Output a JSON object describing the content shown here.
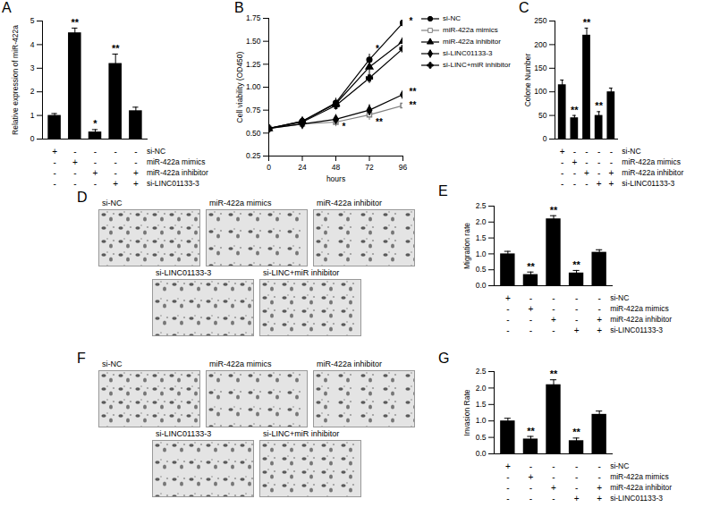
{
  "chart_data": [
    {
      "panel": "A",
      "type": "bar",
      "ylabel": "Relative expression of miR-422a",
      "ylim": [
        0,
        5
      ],
      "yticks": [
        0,
        1,
        2,
        3,
        4,
        5
      ],
      "tick_labels": "y",
      "color": "#000000",
      "values": [
        1.0,
        4.5,
        0.3,
        3.2,
        1.2
      ],
      "errors": [
        0.08,
        0.2,
        0.1,
        0.4,
        0.15
      ],
      "annotations": [
        null,
        "**",
        "*",
        "**",
        null
      ],
      "conditions": [
        {
          "name": "si-NC",
          "marks": [
            "+",
            "-",
            "-",
            "-",
            "-"
          ]
        },
        {
          "name": "miR-422a mimics",
          "marks": [
            "-",
            "+",
            "-",
            "-",
            "-"
          ]
        },
        {
          "name": "miR-422a inhibitor",
          "marks": [
            "-",
            "-",
            "+",
            "-",
            "+"
          ]
        },
        {
          "name": "si-LINC01133-3",
          "marks": [
            "-",
            "-",
            "-",
            "+",
            "+"
          ]
        }
      ]
    },
    {
      "panel": "B",
      "type": "line",
      "xlabel": "hours",
      "ylabel": "Cell viability (OD450)",
      "x": [
        0,
        24,
        48,
        72,
        96
      ],
      "xlim": [
        0,
        96
      ],
      "xticks": [
        0,
        24,
        48,
        72,
        96
      ],
      "ylim": [
        0.25,
        1.75
      ],
      "yticks": [
        0.25,
        {
          "value": 0.5,
          "label": "0.50"
        },
        0.75,
        {
          "value": 1,
          "label": "1.00"
        },
        1.25,
        {
          "value": 1.5,
          "label": "1.50"
        },
        1.75
      ],
      "legend": "right",
      "series": [
        {
          "name": "si-NC",
          "color": "#000000",
          "marker": "circle",
          "values": [
            0.55,
            0.63,
            0.83,
            1.3,
            1.7
          ],
          "errors": [
            0.03,
            0.04,
            0.05,
            0.06,
            0.05
          ]
        },
        {
          "name": "miR-422a mimics",
          "color": "#808080",
          "marker": "open-square",
          "values": [
            0.55,
            0.6,
            0.62,
            0.7,
            0.8
          ],
          "errors": [
            0.03,
            0.04,
            0.05,
            0.06,
            0.07
          ]
        },
        {
          "name": "miR-422a inhibitor",
          "color": "#000000",
          "marker": "triangle",
          "values": [
            0.55,
            0.63,
            0.82,
            1.22,
            1.5
          ],
          "errors": [
            0.03,
            0.04,
            0.05,
            0.06,
            0.06
          ]
        },
        {
          "name": "si-LINC01133-3",
          "color": "#000000",
          "marker": "diamond",
          "values": [
            0.55,
            0.6,
            0.65,
            0.75,
            0.92
          ],
          "errors": [
            0.03,
            0.04,
            0.05,
            0.06,
            0.08
          ]
        },
        {
          "name": "si-LINC+miR inhibitor",
          "color": "#000000",
          "marker": "cross",
          "values": [
            0.55,
            0.62,
            0.8,
            1.1,
            1.42
          ],
          "errors": [
            0.03,
            0.04,
            0.05,
            0.06,
            0.06
          ]
        }
      ],
      "annotations": [
        {
          "x": 72,
          "y": 1.42,
          "text": "*"
        },
        {
          "x": 96,
          "y": 1.72,
          "text": "*"
        },
        {
          "x": 96,
          "y": 0.95,
          "text": "**"
        },
        {
          "x": 96,
          "y": 0.8,
          "text": "**"
        },
        {
          "x": 48,
          "y": 0.57,
          "text": "*"
        },
        {
          "x": 72,
          "y": 0.62,
          "text": "**"
        }
      ]
    },
    {
      "panel": "C",
      "type": "bar",
      "ylabel": "Colone Number",
      "ylim": [
        0,
        250
      ],
      "yticks": [
        0,
        50,
        100,
        150,
        200,
        250
      ],
      "tick_labels": "y",
      "color": "#000000",
      "values": [
        115,
        45,
        220,
        50,
        100
      ],
      "errors": [
        10,
        5,
        15,
        8,
        8
      ],
      "annotations": [
        null,
        "**",
        "**",
        "**",
        null
      ],
      "conditions": [
        {
          "name": "si-NC",
          "marks": [
            "+",
            "-",
            "-",
            "-",
            "-"
          ]
        },
        {
          "name": "miR-422a mimics",
          "marks": [
            "-",
            "+",
            "-",
            "-",
            "-"
          ]
        },
        {
          "name": "miR-422a inhibitor",
          "marks": [
            "-",
            "-",
            "+",
            "-",
            "+"
          ]
        },
        {
          "name": "si-LINC01133-3",
          "marks": [
            "-",
            "-",
            "-",
            "+",
            "+"
          ]
        }
      ]
    },
    {
      "panel": "D",
      "type": "image_grid",
      "images": [
        "si-NC",
        "miR-422a mimics",
        "miR-422a inhibitor",
        "si-LINC01133-3",
        "si-LINC+miR inhibitor"
      ]
    },
    {
      "panel": "E",
      "type": "bar",
      "ylabel": "Migration rate",
      "ylim": [
        0,
        2.5
      ],
      "yticks": [
        {
          "value": 0,
          "label": "0.0"
        },
        0.5,
        {
          "value": 1,
          "label": "1.0"
        },
        1.5,
        {
          "value": 2,
          "label": "2.0"
        },
        2.5
      ],
      "tick_labels": "y",
      "color": "#000000",
      "values": [
        1.0,
        0.35,
        2.1,
        0.4,
        1.05
      ],
      "errors": [
        0.08,
        0.08,
        0.1,
        0.08,
        0.08
      ],
      "annotations": [
        null,
        "**",
        "**",
        "**",
        null
      ],
      "conditions": [
        {
          "name": "si-NC",
          "marks": [
            "+",
            "-",
            "-",
            "-",
            "-"
          ]
        },
        {
          "name": "miR-422a mimics",
          "marks": [
            "-",
            "+",
            "-",
            "-",
            "-"
          ]
        },
        {
          "name": "miR-422a inhibitor",
          "marks": [
            "-",
            "-",
            "+",
            "-",
            "+"
          ]
        },
        {
          "name": "si-LINC01133-3",
          "marks": [
            "-",
            "-",
            "-",
            "+",
            "+"
          ]
        }
      ]
    },
    {
      "panel": "F",
      "type": "image_grid",
      "images": [
        "si-NC",
        "miR-422a mimics",
        "miR-422a inhibitor",
        "si-LINC01133-3",
        "si-LINC+miR inhibitor"
      ]
    },
    {
      "panel": "G",
      "type": "bar",
      "ylabel": "Invasion Rate",
      "ylim": [
        0,
        2.5
      ],
      "yticks": [
        {
          "value": 0,
          "label": "0.0"
        },
        0.5,
        {
          "value": 1,
          "label": "1.0"
        },
        1.5,
        {
          "value": 2,
          "label": "2.0"
        },
        2.5
      ],
      "tick_labels": "y",
      "color": "#000000",
      "values": [
        1.0,
        0.45,
        2.1,
        0.4,
        1.2
      ],
      "errors": [
        0.08,
        0.08,
        0.15,
        0.08,
        0.1
      ],
      "annotations": [
        null,
        "**",
        "**",
        "**",
        null
      ],
      "conditions": [
        {
          "name": "si-NC",
          "marks": [
            "+",
            "-",
            "-",
            "-",
            "-"
          ]
        },
        {
          "name": "miR-422a mimics",
          "marks": [
            "-",
            "+",
            "-",
            "-",
            "-"
          ]
        },
        {
          "name": "miR-422a inhibitor",
          "marks": [
            "-",
            "-",
            "+",
            "-",
            "+"
          ]
        },
        {
          "name": "si-LINC01133-3",
          "marks": [
            "-",
            "-",
            "-",
            "+",
            "+"
          ]
        }
      ]
    }
  ]
}
